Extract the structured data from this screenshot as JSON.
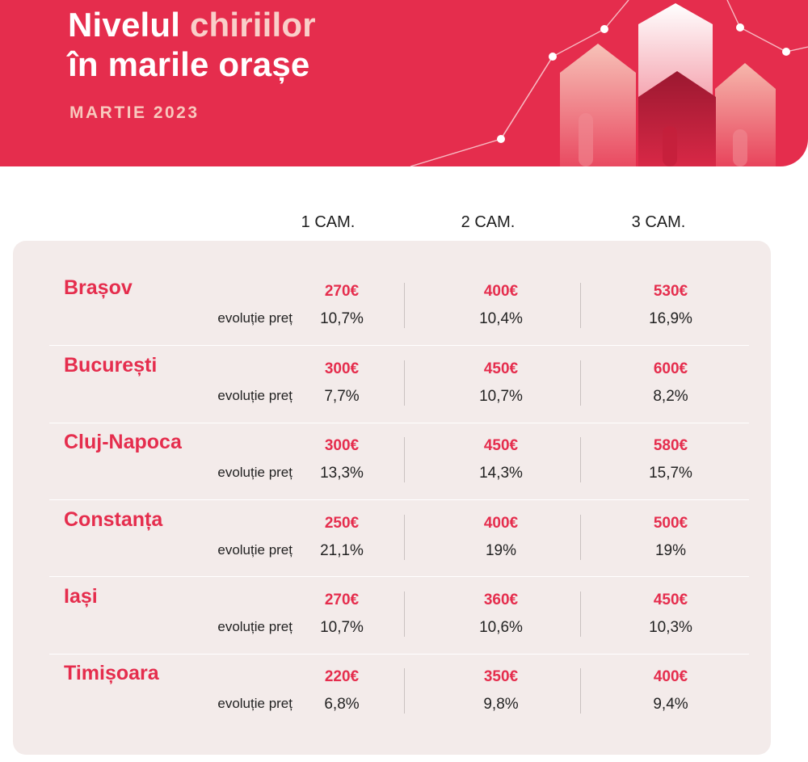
{
  "header": {
    "title_line1_a": "Nivelul ",
    "title_line1_b": "chiriilor",
    "title_line2": "în marile orașe",
    "subtitle": "MARTIE 2023"
  },
  "columns": [
    "1 CAM.",
    "2 CAM.",
    "3 CAM."
  ],
  "evolution_label": "evoluție preț",
  "rows": [
    {
      "city": "Brașov",
      "prices": [
        "270€",
        "400€",
        "530€"
      ],
      "evolution": [
        "10,7%",
        "10,4%",
        "16,9%"
      ]
    },
    {
      "city": "București",
      "prices": [
        "300€",
        "450€",
        "600€"
      ],
      "evolution": [
        "7,7%",
        "10,7%",
        "8,2%"
      ]
    },
    {
      "city": "Cluj-Napoca",
      "prices": [
        "300€",
        "450€",
        "580€"
      ],
      "evolution": [
        "13,3%",
        "14,3%",
        "15,7%"
      ]
    },
    {
      "city": "Constanța",
      "prices": [
        "250€",
        "400€",
        "500€"
      ],
      "evolution": [
        "21,1%",
        "19%",
        "19%"
      ]
    },
    {
      "city": "Iași",
      "prices": [
        "270€",
        "360€",
        "450€"
      ],
      "evolution": [
        "10,7%",
        "10,6%",
        "10,3%"
      ]
    },
    {
      "city": "Timișoara",
      "prices": [
        "220€",
        "350€",
        "400€"
      ],
      "evolution": [
        "6,8%",
        "9,8%",
        "9,4%"
      ]
    }
  ],
  "colors": {
    "brand_red": "#e52d4d",
    "panel_bg": "#f3ebea",
    "title_accent": "#f9cfc9"
  },
  "icons": [
    "houses-illustration"
  ]
}
